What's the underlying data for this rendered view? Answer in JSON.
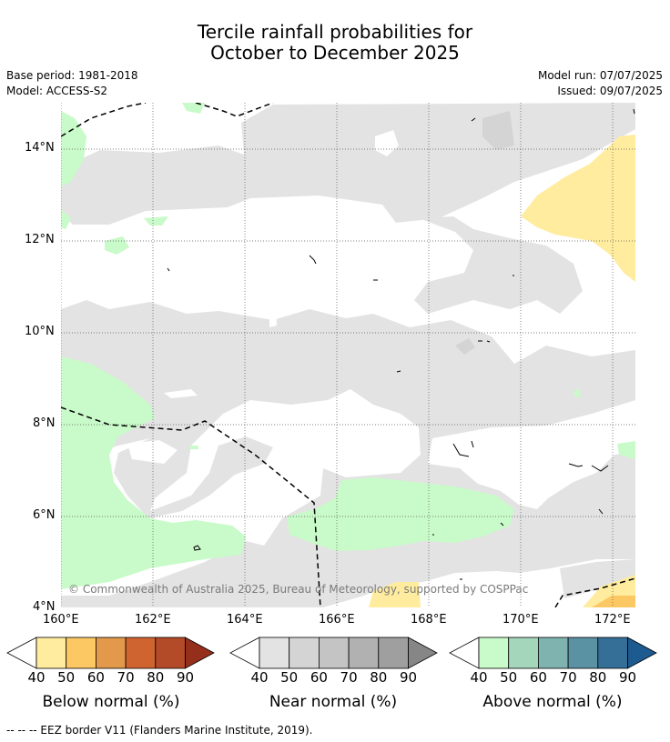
{
  "title_line1": "Tercile rainfall probabilities for",
  "title_line2": "October to December 2025",
  "base_period": "Base period: 1981-2018",
  "model": "Model: ACCESS-S2",
  "model_run": "Model run: 07/07/2025",
  "issued": "Issued: 09/07/2025",
  "copyright": "© Commonwealth of Australia 2025, Bureau of Meteorology, supported by COSPPac",
  "footer": "--  --  -- EEZ border V11 (Flanders Marine Institute, 2019).",
  "map": {
    "lon_labels": [
      "160°E",
      "162°E",
      "164°E",
      "166°E",
      "168°E",
      "170°E",
      "172°E"
    ],
    "lat_labels": [
      "14°N",
      "12°N",
      "10°N",
      "8°N",
      "6°N",
      "4°N"
    ],
    "lon_range": [
      160,
      172.5
    ],
    "lat_range": [
      4,
      15
    ]
  },
  "legends": [
    {
      "label": "Below normal (%)",
      "ticks": [
        "40",
        "50",
        "60",
        "70",
        "80",
        "90"
      ],
      "colors": [
        "#ffffff",
        "#ffec9e",
        "#fcc864",
        "#e3994b",
        "#d06431",
        "#b34a28",
        "#962e1c"
      ]
    },
    {
      "label": "Near normal (%)",
      "ticks": [
        "40",
        "50",
        "60",
        "70",
        "80",
        "90"
      ],
      "colors": [
        "#ffffff",
        "#e3e3e3",
        "#d4d4d4",
        "#c4c4c4",
        "#b1b1b1",
        "#9f9f9f",
        "#868686"
      ]
    },
    {
      "label": "Above normal (%)",
      "ticks": [
        "40",
        "50",
        "60",
        "70",
        "80",
        "90"
      ],
      "colors": [
        "#ffffff",
        "#c9fac9",
        "#a4d6bc",
        "#7fb3b0",
        "#5a91a3",
        "#356e96",
        "#1d5a90"
      ]
    }
  ]
}
